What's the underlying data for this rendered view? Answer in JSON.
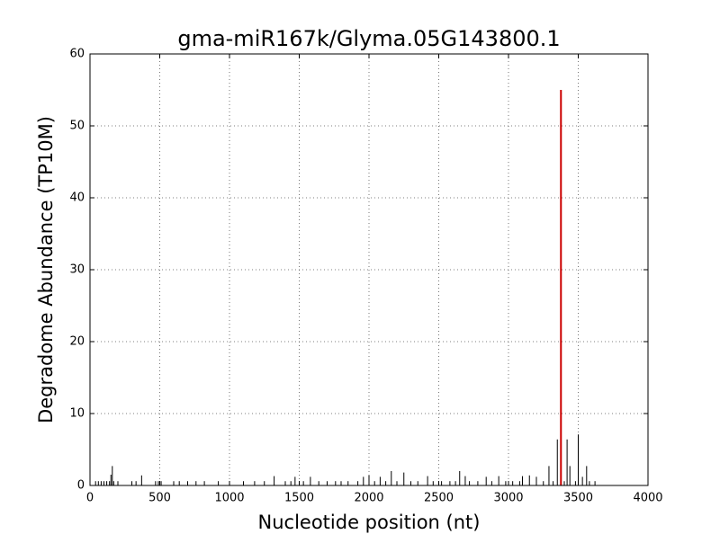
{
  "chart_data": {
    "type": "stem",
    "title": "gma-miR167k/Glyma.05G143800.1",
    "xlabel": "Nucleotide position (nt)",
    "ylabel": "Degradome Abundance (TP10M)",
    "xlim": [
      0,
      4000
    ],
    "xticks": [
      0,
      500,
      1000,
      1500,
      2000,
      2500,
      3000,
      3500,
      4000
    ],
    "ylim": [
      0,
      60
    ],
    "yticks": [
      0,
      10,
      20,
      30,
      40,
      50,
      60
    ],
    "grid": true,
    "series": [
      {
        "color": "#000000",
        "x": [
          40,
          60,
          80,
          100,
          120,
          140,
          150,
          160,
          170,
          200,
          300,
          330,
          370,
          470,
          490,
          510,
          600,
          640,
          700,
          760,
          820,
          920,
          1000,
          1100,
          1180,
          1250,
          1320,
          1400,
          1440,
          1470,
          1530,
          1580,
          1640,
          1700,
          1760,
          1800,
          1850,
          1920,
          1960,
          2000,
          2040,
          2080,
          2120,
          2160,
          2200,
          2250,
          2300,
          2350,
          2420,
          2460,
          2520,
          2580,
          2620,
          2650,
          2690,
          2720,
          2780,
          2840,
          2880,
          2930,
          2980,
          3030,
          3080,
          3100,
          3150,
          3200,
          3250,
          3290,
          3320,
          3350,
          3400,
          3420,
          3440,
          3480,
          3500,
          3530,
          3560,
          3580,
          3620
        ],
        "values": [
          0.6,
          0.6,
          0.6,
          0.6,
          0.6,
          0.6,
          1.5,
          2.7,
          0.6,
          0.6,
          0.6,
          0.6,
          1.4,
          0.6,
          0.6,
          0.6,
          0.6,
          0.6,
          0.6,
          0.6,
          0.6,
          0.6,
          0.6,
          0.6,
          0.6,
          0.6,
          1.3,
          0.6,
          0.6,
          1.2,
          0.6,
          1.2,
          0.6,
          0.6,
          0.6,
          0.6,
          0.6,
          0.6,
          1.2,
          1.4,
          0.6,
          1.2,
          0.6,
          2.0,
          0.6,
          1.8,
          0.6,
          0.6,
          1.3,
          0.6,
          0.6,
          0.6,
          0.6,
          2.0,
          1.3,
          0.6,
          0.6,
          1.2,
          0.6,
          1.3,
          0.6,
          0.6,
          0.6,
          1.3,
          1.4,
          1.2,
          0.6,
          2.7,
          0.6,
          6.4,
          0.6,
          6.4,
          2.7,
          0.6,
          7.1,
          1.2,
          2.7,
          0.6,
          0.6
        ]
      },
      {
        "color": "#cc0000",
        "x": [
          3376
        ],
        "values": [
          55
        ]
      }
    ]
  }
}
